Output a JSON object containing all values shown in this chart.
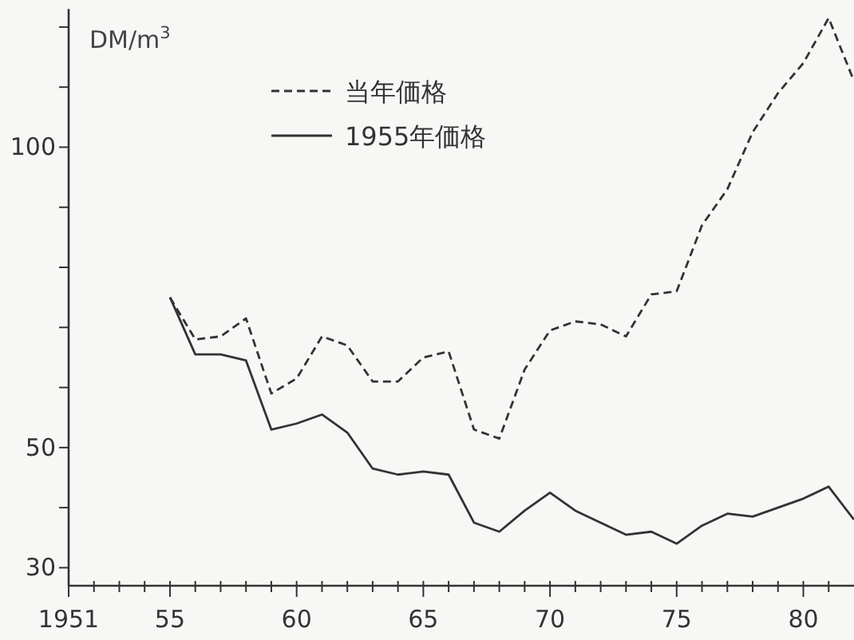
{
  "chart_data": {
    "type": "line",
    "ylabel": "DM/m$^{3}$",
    "legend": "top left",
    "marker": "none",
    "grid": false,
    "x": [
      1955,
      1956,
      1957,
      1958,
      1959,
      1960,
      1961,
      1962,
      1963,
      1964,
      1965,
      1966,
      1967,
      1968,
      1969,
      1970,
      1971,
      1972,
      1973,
      1974,
      1975,
      1976,
      1977,
      1978,
      1979,
      1980,
      1981,
      1982
    ],
    "series": [
      {
        "name": "当年価格",
        "color": "#333333",
        "line_style": "dashed",
        "values": [
          75,
          68,
          68.5,
          71.5,
          59,
          61.5,
          68.5,
          67,
          61,
          61,
          65,
          66,
          53,
          51.5,
          63,
          69.5,
          71,
          70.5,
          68.5,
          75.5,
          76,
          87,
          93,
          102.5,
          109,
          114,
          121.5,
          111
        ]
      },
      {
        "name": "1955年価格",
        "color": "#333333",
        "line_style": "solid",
        "values": [
          75,
          65.5,
          65.5,
          64.5,
          53,
          54,
          55.5,
          52.5,
          46.5,
          45.5,
          46,
          45.5,
          37.5,
          36,
          39.5,
          42.5,
          39.5,
          37.5,
          35.5,
          36,
          34,
          37,
          39,
          38.5,
          40,
          41.5,
          43.5,
          38
        ]
      }
    ],
    "xlim": [
      1951,
      1982
    ],
    "ylim": [
      27,
      123
    ],
    "xticks": [
      {
        "value": 1951,
        "label": "1951"
      },
      {
        "value": 1952,
        "label": null
      },
      {
        "value": 1953,
        "label": null
      },
      {
        "value": 1954,
        "label": null
      },
      {
        "value": 1955,
        "label": "55"
      },
      {
        "value": 1956,
        "label": null
      },
      {
        "value": 1957,
        "label": null
      },
      {
        "value": 1958,
        "label": null
      },
      {
        "value": 1959,
        "label": null
      },
      {
        "value": 1960,
        "label": "60"
      },
      {
        "value": 1961,
        "label": null
      },
      {
        "value": 1962,
        "label": null
      },
      {
        "value": 1963,
        "label": null
      },
      {
        "value": 1964,
        "label": null
      },
      {
        "value": 1965,
        "label": "65"
      },
      {
        "value": 1966,
        "label": null
      },
      {
        "value": 1967,
        "label": null
      },
      {
        "value": 1968,
        "label": null
      },
      {
        "value": 1969,
        "label": null
      },
      {
        "value": 1970,
        "label": "70"
      },
      {
        "value": 1971,
        "label": null
      },
      {
        "value": 1972,
        "label": null
      },
      {
        "value": 1973,
        "label": null
      },
      {
        "value": 1974,
        "label": null
      },
      {
        "value": 1975,
        "label": "75"
      },
      {
        "value": 1976,
        "label": null
      },
      {
        "value": 1977,
        "label": null
      },
      {
        "value": 1978,
        "label": null
      },
      {
        "value": 1979,
        "label": null
      },
      {
        "value": 1980,
        "label": "80"
      },
      {
        "value": 1981,
        "label": null
      }
    ],
    "yticks": [
      30,
      {
        "value": 40,
        "label": null
      },
      50,
      {
        "value": 60,
        "label": null
      },
      {
        "value": 70,
        "label": null
      },
      {
        "value": 80,
        "label": null
      },
      {
        "value": 90,
        "label": null
      },
      100,
      {
        "value": 110,
        "label": null
      },
      {
        "value": 120,
        "label": null
      }
    ]
  }
}
